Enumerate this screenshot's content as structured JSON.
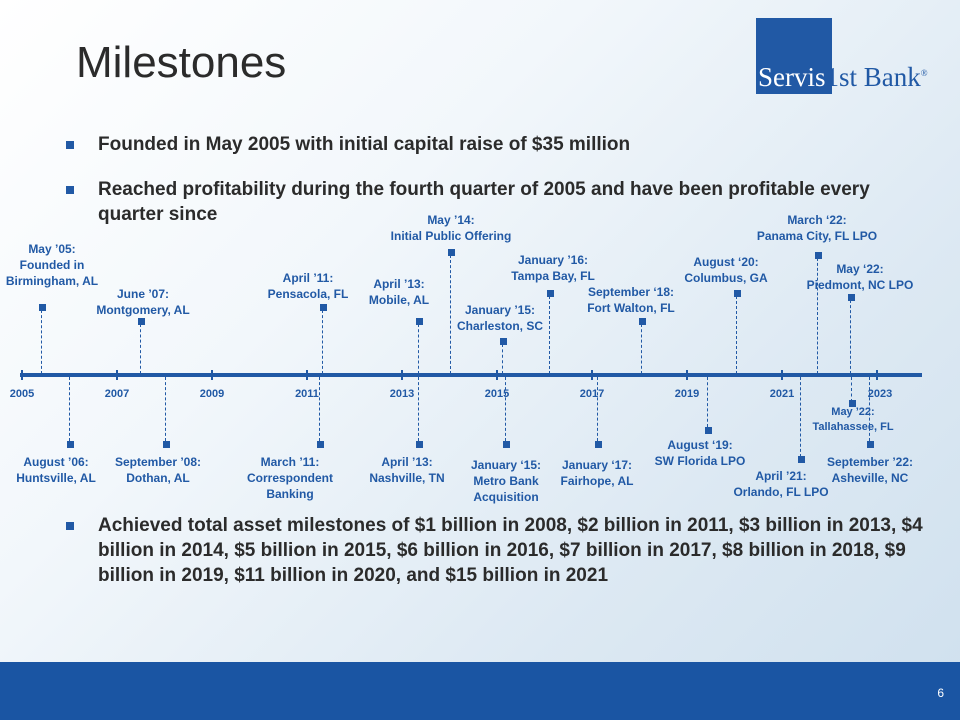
{
  "title": "Milestones",
  "logo": {
    "part1": "Servis",
    "part2": "1st Bank",
    "reg": "®"
  },
  "bullets": [
    "Founded in May 2005 with initial capital raise of $35 million",
    "Reached profitability during the fourth quarter of 2005 and have been profitable every quarter since"
  ],
  "bullet_bottom": "Achieved total asset milestones of $1 billion in 2008, $2 billion in 2011, $3 billion in 2013, $4 billion in 2014, $5 billion in 2015, $6 billion in 2016,  $7 billion in 2017, $8 billion in 2018, $9 billion in 2019, $11 billion in 2020, and $15 billion in 2021",
  "years": [
    "2005",
    "2007",
    "2009",
    "2011",
    "2013",
    "2015",
    "2017",
    "2019",
    "2021",
    "2023"
  ],
  "milestones_above": [
    "May ’05:\nFounded in\nBirmingham, AL",
    "June ’07:\nMontgomery, AL",
    "April ’11:\nPensacola, FL",
    "April ’13:\nMobile, AL",
    "May ’14:\nInitial Public Offering",
    "January ’15:\nCharleston, SC",
    "January ’16:\nTampa Bay, FL",
    "September ‘18:\nFort Walton, FL",
    "August ‘20:\nColumbus, GA",
    "March ‘22:\nPanama City, FL LPO",
    "May ‘22:\nPiedmont, NC LPO"
  ],
  "milestones_below": [
    "August ’06:\nHuntsville, AL",
    "September ’08:\nDothan, AL",
    "March ’11:\nCorrespondent\nBanking",
    "April ’13:\nNashville, TN",
    "January ‘15:\nMetro Bank\nAcquisition",
    "January ‘17:\nFairhope, AL",
    "August ‘19:\nSW Florida LPO",
    "April ’21:\nOrlando, FL LPO",
    "May ’22:\nTallahassee,  FL",
    "September ’22:\nAsheville, NC"
  ],
  "page_number": "6",
  "colors": {
    "accent": "#2159a5",
    "footer": "#1a55a3",
    "text": "#2b2b2b"
  }
}
